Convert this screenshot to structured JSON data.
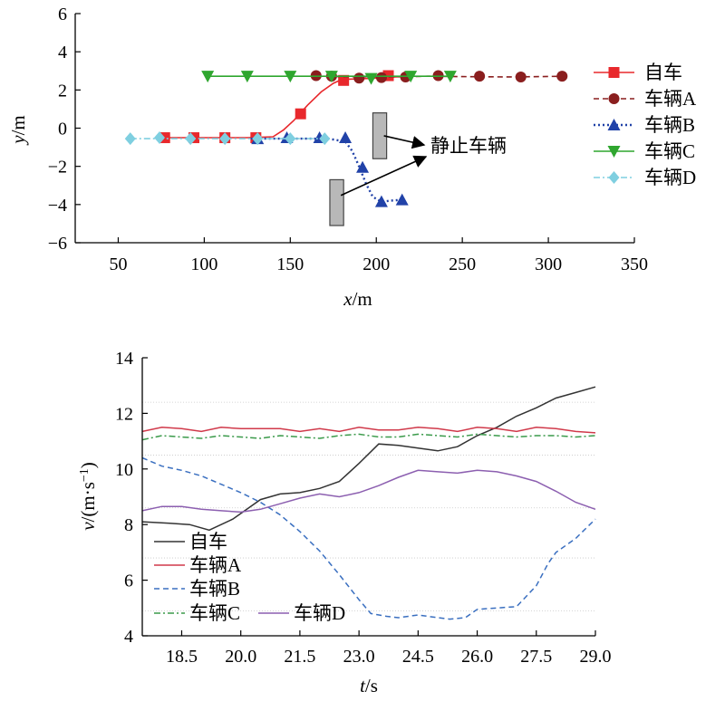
{
  "chart_data": [
    {
      "type": "scatter",
      "xlabel_var": "x",
      "xlabel_unit": "/m",
      "ylabel_var": "y",
      "ylabel_unit": "/m",
      "xlim": [
        25,
        350
      ],
      "ylim": [
        -6,
        6
      ],
      "xticks": [
        50,
        100,
        150,
        200,
        250,
        300,
        350
      ],
      "yticks": [
        6,
        4,
        2,
        0,
        -2,
        -4,
        -6
      ],
      "legend_position": "right",
      "annotation": "静止车辆",
      "series": [
        {
          "name": "自车",
          "color": "#e8282c",
          "line": "solid",
          "marker": "square",
          "line_points": [
            [
              75,
              -0.5
            ],
            [
              100,
              -0.5
            ],
            [
              125,
              -0.5
            ],
            [
              140,
              -0.45
            ],
            [
              146,
              -0.1
            ],
            [
              152,
              0.4
            ],
            [
              160,
              1.2
            ],
            [
              168,
              1.9
            ],
            [
              175,
              2.35
            ],
            [
              180,
              2.55
            ],
            [
              195,
              2.6
            ],
            [
              205,
              2.65
            ],
            [
              215,
              2.7
            ]
          ],
          "marker_points": [
            [
              77,
              -0.5
            ],
            [
              94,
              -0.5
            ],
            [
              112,
              -0.5
            ],
            [
              130,
              -0.5
            ],
            [
              156,
              0.75
            ],
            [
              181,
              2.5
            ],
            [
              207,
              2.75
            ]
          ]
        },
        {
          "name": "车辆A",
          "color": "#8a1e1e",
          "line": "dashed",
          "marker": "circle",
          "line_points": [
            [
              165,
              2.72
            ],
            [
              200,
              2.68
            ],
            [
              230,
              2.72
            ],
            [
              250,
              2.7
            ],
            [
              280,
              2.68
            ],
            [
              308,
              2.72
            ]
          ],
          "marker_points": [
            [
              165,
              2.75
            ],
            [
              174,
              2.72
            ],
            [
              190,
              2.62
            ],
            [
              203,
              2.65
            ],
            [
              217,
              2.68
            ],
            [
              236,
              2.75
            ],
            [
              260,
              2.72
            ],
            [
              284,
              2.68
            ],
            [
              308,
              2.72
            ]
          ]
        },
        {
          "name": "车辆B",
          "color": "#2142a8",
          "line": "dotted",
          "marker": "triangle-up",
          "line_points": [
            [
              127,
              -0.55
            ],
            [
              150,
              -0.55
            ],
            [
              172,
              -0.55
            ],
            [
              182,
              -0.7
            ],
            [
              186,
              -1.2
            ],
            [
              190,
              -2.0
            ],
            [
              194,
              -2.9
            ],
            [
              198,
              -3.6
            ],
            [
              203,
              -3.85
            ],
            [
              208,
              -3.8
            ],
            [
              215,
              -3.75
            ]
          ],
          "marker_points": [
            [
              131,
              -0.55
            ],
            [
              148,
              -0.5
            ],
            [
              167,
              -0.5
            ],
            [
              182,
              -0.5
            ],
            [
              192,
              -2.05
            ],
            [
              203,
              -3.85
            ],
            [
              215,
              -3.75
            ]
          ]
        },
        {
          "name": "车辆C",
          "color": "#2fa62f",
          "line": "solid",
          "marker": "triangle-down",
          "line_points": [
            [
              102,
              2.72
            ],
            [
              150,
              2.72
            ],
            [
              200,
              2.72
            ],
            [
              243,
              2.72
            ]
          ],
          "marker_points": [
            [
              102,
              2.72
            ],
            [
              125,
              2.72
            ],
            [
              150,
              2.72
            ],
            [
              174,
              2.72
            ],
            [
              197,
              2.6
            ],
            [
              220,
              2.72
            ],
            [
              243,
              2.72
            ]
          ]
        },
        {
          "name": "车辆D",
          "color": "#7fcfe0",
          "line": "dashdot",
          "marker": "diamond",
          "line_points": [
            [
              57,
              -0.55
            ],
            [
              100,
              -0.55
            ],
            [
              140,
              -0.55
            ],
            [
              170,
              -0.55
            ]
          ],
          "marker_points": [
            [
              57,
              -0.55
            ],
            [
              74,
              -0.5
            ],
            [
              92,
              -0.55
            ],
            [
              112,
              -0.55
            ],
            [
              131,
              -0.55
            ],
            [
              150,
              -0.55
            ],
            [
              170,
              -0.55
            ]
          ]
        }
      ],
      "static_vehicles": [
        {
          "x_center": 202,
          "y_center": -0.4,
          "width": 8,
          "height": 2.4
        },
        {
          "x_center": 177,
          "y_center": -3.9,
          "width": 8,
          "height": 2.4
        }
      ]
    },
    {
      "type": "line",
      "xlabel_var": "t",
      "xlabel_unit": "/s",
      "ylabel_var": "v",
      "ylabel_unit": "/(m·s",
      "ylabel_sup": "−1",
      "ylabel_close": ")",
      "xlim": [
        17.5,
        29.0
      ],
      "ylim": [
        4,
        14
      ],
      "xticks": [
        "18.5",
        "20.0",
        "21.5",
        "23.0",
        "24.5",
        "26.0",
        "27.5",
        "29.0"
      ],
      "yticks": [
        14,
        12,
        10,
        8,
        6,
        4
      ],
      "grid": "horizontal-dotted",
      "legend_position": "bottom-left",
      "series": [
        {
          "name": "自车",
          "color": "#333333",
          "line": "solid",
          "points": [
            [
              17.5,
              8.1
            ],
            [
              18.2,
              8.05
            ],
            [
              18.7,
              8.0
            ],
            [
              19.2,
              7.8
            ],
            [
              19.8,
              8.2
            ],
            [
              20.5,
              8.9
            ],
            [
              21.0,
              9.1
            ],
            [
              21.5,
              9.15
            ],
            [
              22.0,
              9.3
            ],
            [
              22.5,
              9.55
            ],
            [
              23.0,
              10.2
            ],
            [
              23.5,
              10.9
            ],
            [
              24.0,
              10.85
            ],
            [
              24.5,
              10.75
            ],
            [
              25.0,
              10.65
            ],
            [
              25.5,
              10.8
            ],
            [
              26.0,
              11.2
            ],
            [
              26.5,
              11.5
            ],
            [
              27.0,
              11.9
            ],
            [
              27.5,
              12.2
            ],
            [
              28.0,
              12.55
            ],
            [
              28.5,
              12.75
            ],
            [
              29.0,
              12.95
            ]
          ]
        },
        {
          "name": "车辆A",
          "color": "#d0394a",
          "line": "solid",
          "points": [
            [
              17.5,
              11.35
            ],
            [
              18.0,
              11.5
            ],
            [
              18.5,
              11.45
            ],
            [
              19.0,
              11.35
            ],
            [
              19.5,
              11.5
            ],
            [
              20.0,
              11.45
            ],
            [
              20.5,
              11.45
            ],
            [
              21.0,
              11.45
            ],
            [
              21.5,
              11.35
            ],
            [
              22.0,
              11.45
            ],
            [
              22.5,
              11.35
            ],
            [
              23.0,
              11.5
            ],
            [
              23.5,
              11.4
            ],
            [
              24.0,
              11.4
            ],
            [
              24.5,
              11.5
            ],
            [
              25.0,
              11.45
            ],
            [
              25.5,
              11.35
            ],
            [
              26.0,
              11.5
            ],
            [
              26.5,
              11.45
            ],
            [
              27.0,
              11.35
            ],
            [
              27.5,
              11.5
            ],
            [
              28.0,
              11.45
            ],
            [
              28.5,
              11.35
            ],
            [
              29.0,
              11.3
            ]
          ]
        },
        {
          "name": "车辆B",
          "color": "#3a6fc0",
          "line": "dashed",
          "points": [
            [
              17.5,
              10.4
            ],
            [
              18.0,
              10.1
            ],
            [
              18.5,
              9.95
            ],
            [
              19.0,
              9.75
            ],
            [
              19.5,
              9.45
            ],
            [
              20.0,
              9.15
            ],
            [
              20.5,
              8.8
            ],
            [
              21.0,
              8.35
            ],
            [
              21.5,
              7.75
            ],
            [
              22.0,
              7.05
            ],
            [
              22.5,
              6.2
            ],
            [
              23.0,
              5.3
            ],
            [
              23.3,
              4.8
            ],
            [
              23.7,
              4.7
            ],
            [
              24.0,
              4.65
            ],
            [
              24.5,
              4.75
            ],
            [
              25.0,
              4.65
            ],
            [
              25.3,
              4.6
            ],
            [
              25.7,
              4.65
            ],
            [
              26.0,
              4.95
            ],
            [
              26.5,
              5.0
            ],
            [
              27.0,
              5.05
            ],
            [
              27.5,
              5.8
            ],
            [
              27.8,
              6.6
            ],
            [
              28.0,
              7.0
            ],
            [
              28.5,
              7.5
            ],
            [
              29.0,
              8.2
            ]
          ]
        },
        {
          "name": "车辆C",
          "color": "#3a9a4a",
          "line": "dashdot",
          "points": [
            [
              17.5,
              11.05
            ],
            [
              18.0,
              11.2
            ],
            [
              18.5,
              11.15
            ],
            [
              19.0,
              11.1
            ],
            [
              19.5,
              11.2
            ],
            [
              20.0,
              11.15
            ],
            [
              20.5,
              11.1
            ],
            [
              21.0,
              11.2
            ],
            [
              21.5,
              11.15
            ],
            [
              22.0,
              11.1
            ],
            [
              22.5,
              11.2
            ],
            [
              23.0,
              11.25
            ],
            [
              23.5,
              11.15
            ],
            [
              24.0,
              11.15
            ],
            [
              24.5,
              11.25
            ],
            [
              25.0,
              11.2
            ],
            [
              25.5,
              11.15
            ],
            [
              26.0,
              11.25
            ],
            [
              26.5,
              11.2
            ],
            [
              27.0,
              11.15
            ],
            [
              27.5,
              11.2
            ],
            [
              28.0,
              11.2
            ],
            [
              28.5,
              11.15
            ],
            [
              29.0,
              11.2
            ]
          ]
        },
        {
          "name": "车辆D",
          "color": "#8c5fb0",
          "line": "solid",
          "points": [
            [
              17.5,
              8.5
            ],
            [
              18.0,
              8.65
            ],
            [
              18.5,
              8.65
            ],
            [
              19.0,
              8.55
            ],
            [
              19.5,
              8.5
            ],
            [
              20.0,
              8.45
            ],
            [
              20.5,
              8.55
            ],
            [
              21.0,
              8.75
            ],
            [
              21.5,
              8.95
            ],
            [
              22.0,
              9.1
            ],
            [
              22.5,
              9.0
            ],
            [
              23.0,
              9.15
            ],
            [
              23.5,
              9.4
            ],
            [
              24.0,
              9.7
            ],
            [
              24.5,
              9.95
            ],
            [
              25.0,
              9.9
            ],
            [
              25.5,
              9.85
            ],
            [
              26.0,
              9.95
            ],
            [
              26.5,
              9.9
            ],
            [
              27.0,
              9.75
            ],
            [
              27.5,
              9.55
            ],
            [
              28.0,
              9.2
            ],
            [
              28.5,
              8.8
            ],
            [
              29.0,
              8.55
            ]
          ]
        }
      ]
    }
  ]
}
